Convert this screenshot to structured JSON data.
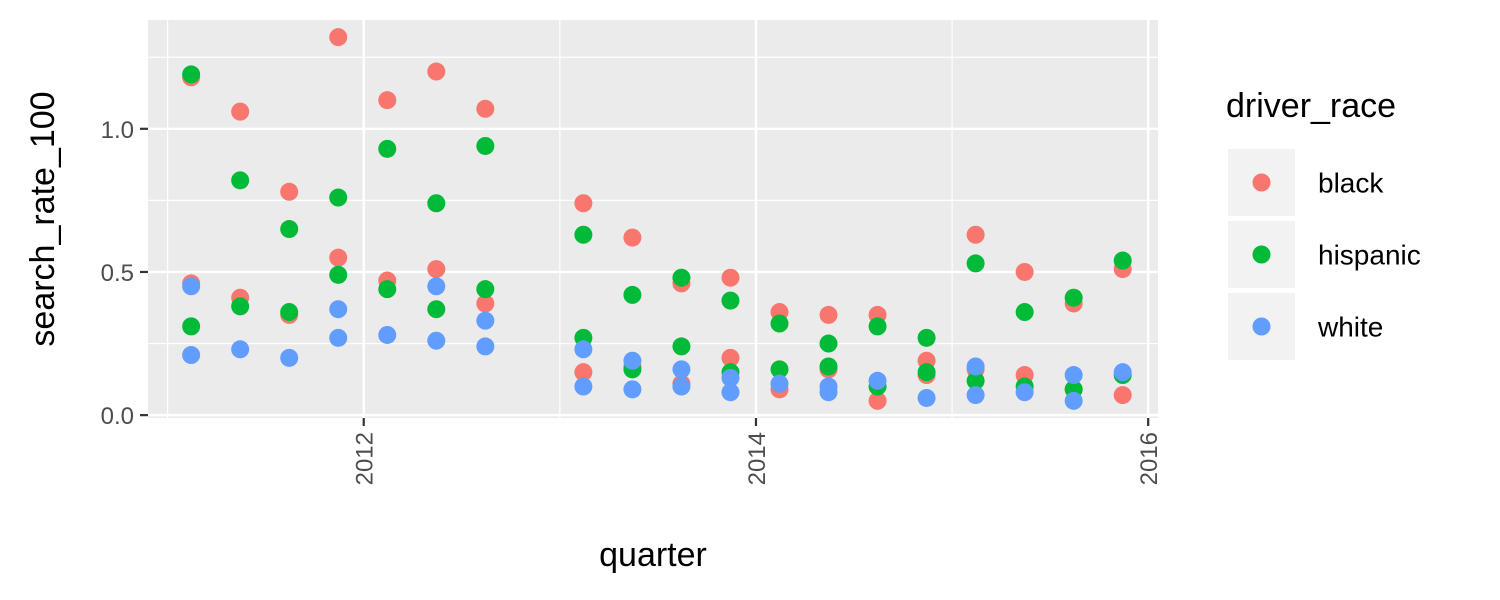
{
  "chart_data": {
    "type": "scatter",
    "xlabel": "quarter",
    "ylabel": "search_rate_100",
    "xlim": [
      2010.9,
      2016.05
    ],
    "ylim": [
      -0.01,
      1.38
    ],
    "xticks": [
      2012,
      2014,
      2016
    ],
    "yticks": [
      0.0,
      0.5,
      1.0
    ],
    "ytick_labels": [
      "0.0",
      "0.5",
      "1.0"
    ],
    "xtick_labels": [
      "2012",
      "2014",
      "2016"
    ],
    "grid": true,
    "legend": {
      "title": "driver_race",
      "position": "right"
    },
    "x": [
      2011.0,
      2011.25,
      2011.5,
      2011.75,
      2012.0,
      2012.25,
      2012.5,
      2012.75,
      2013.0,
      2013.25,
      2013.5,
      2013.75,
      2014.0,
      2014.25,
      2014.5,
      2014.75,
      2015.0,
      2015.25,
      2015.5,
      2015.75
    ],
    "series": [
      {
        "name": "black",
        "color": "#F8766D",
        "points": [
          [
            2011.12,
            1.18
          ],
          [
            2011.12,
            0.46
          ],
          [
            2011.37,
            1.06
          ],
          [
            2011.37,
            0.41
          ],
          [
            2011.62,
            0.78
          ],
          [
            2011.62,
            0.35
          ],
          [
            2011.87,
            1.32
          ],
          [
            2011.87,
            0.55
          ],
          [
            2012.12,
            1.1
          ],
          [
            2012.12,
            0.47
          ],
          [
            2012.37,
            1.2
          ],
          [
            2012.37,
            0.51
          ],
          [
            2012.62,
            1.07
          ],
          [
            2012.62,
            0.39
          ],
          [
            2013.12,
            0.74
          ],
          [
            2013.12,
            0.15
          ],
          [
            2013.37,
            0.62
          ],
          [
            2013.37,
            0.17
          ],
          [
            2013.62,
            0.46
          ],
          [
            2013.62,
            0.11
          ],
          [
            2013.87,
            0.48
          ],
          [
            2013.87,
            0.2
          ],
          [
            2014.12,
            0.36
          ],
          [
            2014.12,
            0.09
          ],
          [
            2014.37,
            0.35
          ],
          [
            2014.37,
            0.16
          ],
          [
            2014.62,
            0.35
          ],
          [
            2014.62,
            0.05
          ],
          [
            2014.87,
            0.19
          ],
          [
            2014.87,
            0.14
          ],
          [
            2015.12,
            0.63
          ],
          [
            2015.12,
            0.16
          ],
          [
            2015.37,
            0.5
          ],
          [
            2015.37,
            0.14
          ],
          [
            2015.62,
            0.39
          ],
          [
            2015.62,
            0.09
          ],
          [
            2015.87,
            0.51
          ],
          [
            2015.87,
            0.07
          ]
        ]
      },
      {
        "name": "hispanic",
        "color": "#00BA38",
        "points": [
          [
            2011.12,
            1.19
          ],
          [
            2011.12,
            0.31
          ],
          [
            2011.37,
            0.82
          ],
          [
            2011.37,
            0.38
          ],
          [
            2011.62,
            0.65
          ],
          [
            2011.62,
            0.36
          ],
          [
            2011.87,
            0.76
          ],
          [
            2011.87,
            0.49
          ],
          [
            2012.12,
            0.93
          ],
          [
            2012.12,
            0.44
          ],
          [
            2012.37,
            0.74
          ],
          [
            2012.37,
            0.37
          ],
          [
            2012.62,
            0.94
          ],
          [
            2012.62,
            0.44
          ],
          [
            2013.12,
            0.63
          ],
          [
            2013.12,
            0.27
          ],
          [
            2013.37,
            0.42
          ],
          [
            2013.37,
            0.16
          ],
          [
            2013.62,
            0.48
          ],
          [
            2013.62,
            0.24
          ],
          [
            2013.87,
            0.4
          ],
          [
            2013.87,
            0.15
          ],
          [
            2014.12,
            0.32
          ],
          [
            2014.12,
            0.16
          ],
          [
            2014.37,
            0.25
          ],
          [
            2014.37,
            0.17
          ],
          [
            2014.62,
            0.31
          ],
          [
            2014.62,
            0.1
          ],
          [
            2014.87,
            0.27
          ],
          [
            2014.87,
            0.15
          ],
          [
            2015.12,
            0.53
          ],
          [
            2015.12,
            0.12
          ],
          [
            2015.37,
            0.36
          ],
          [
            2015.37,
            0.1
          ],
          [
            2015.62,
            0.41
          ],
          [
            2015.62,
            0.09
          ],
          [
            2015.87,
            0.54
          ],
          [
            2015.87,
            0.14
          ]
        ]
      },
      {
        "name": "white",
        "color": "#619CFF",
        "points": [
          [
            2011.12,
            0.45
          ],
          [
            2011.12,
            0.21
          ],
          [
            2011.37,
            0.23
          ],
          [
            2011.62,
            0.2
          ],
          [
            2011.87,
            0.37
          ],
          [
            2011.87,
            0.27
          ],
          [
            2012.12,
            0.28
          ],
          [
            2012.37,
            0.45
          ],
          [
            2012.37,
            0.26
          ],
          [
            2012.62,
            0.33
          ],
          [
            2012.62,
            0.24
          ],
          [
            2013.12,
            0.23
          ],
          [
            2013.12,
            0.1
          ],
          [
            2013.37,
            0.19
          ],
          [
            2013.37,
            0.09
          ],
          [
            2013.62,
            0.16
          ],
          [
            2013.62,
            0.1
          ],
          [
            2013.87,
            0.13
          ],
          [
            2013.87,
            0.08
          ],
          [
            2014.12,
            0.11
          ],
          [
            2014.37,
            0.1
          ],
          [
            2014.37,
            0.08
          ],
          [
            2014.62,
            0.12
          ],
          [
            2014.87,
            0.06
          ],
          [
            2015.12,
            0.17
          ],
          [
            2015.12,
            0.07
          ],
          [
            2015.37,
            0.08
          ],
          [
            2015.62,
            0.14
          ],
          [
            2015.62,
            0.05
          ],
          [
            2015.87,
            0.15
          ]
        ]
      }
    ]
  }
}
